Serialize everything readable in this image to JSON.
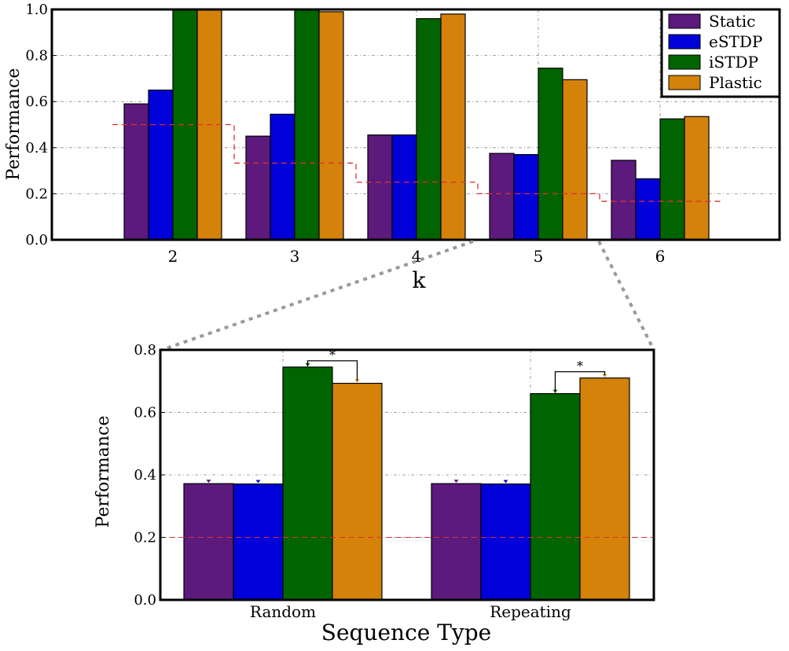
{
  "colors": {
    "Static": "#5b1a7c",
    "eSTDP": "#0000d8",
    "iSTDP": "#006400",
    "Plastic": "#d4820a",
    "chance": "#e03030",
    "zoom_line": "#999999"
  },
  "chart_data": [
    {
      "id": "top",
      "type": "bar",
      "title": "",
      "xlabel": "k",
      "ylabel": "Performance",
      "categories": [
        "2",
        "3",
        "4",
        "5",
        "6"
      ],
      "ylim": [
        0.0,
        1.0
      ],
      "yticks": [
        "0.0",
        "0.2",
        "0.4",
        "0.6",
        "0.8",
        "1.0"
      ],
      "grid": true,
      "legend": "top-right",
      "series": [
        {
          "name": "Static",
          "values": [
            0.59,
            0.45,
            0.455,
            0.375,
            0.345
          ]
        },
        {
          "name": "eSTDP",
          "values": [
            0.65,
            0.545,
            0.455,
            0.37,
            0.265
          ]
        },
        {
          "name": "iSTDP",
          "values": [
            1.0,
            1.0,
            0.96,
            0.745,
            0.525
          ]
        },
        {
          "name": "Plastic",
          "values": [
            1.0,
            0.99,
            0.98,
            0.695,
            0.535
          ]
        }
      ],
      "chance_levels": [
        0.5,
        0.333,
        0.25,
        0.2,
        0.167
      ]
    },
    {
      "id": "bottom",
      "type": "bar",
      "title": "",
      "xlabel": "Sequence Type",
      "ylabel": "Performance",
      "categories": [
        "Random",
        "Repeating"
      ],
      "ylim": [
        0.0,
        0.8
      ],
      "yticks": [
        "0.0",
        "0.2",
        "0.4",
        "0.6",
        "0.8"
      ],
      "grid": true,
      "series": [
        {
          "name": "Static",
          "values": [
            0.372,
            0.372
          ]
        },
        {
          "name": "eSTDP",
          "values": [
            0.371,
            0.371
          ]
        },
        {
          "name": "iSTDP",
          "values": [
            0.745,
            0.66
          ]
        },
        {
          "name": "Plastic",
          "values": [
            0.693,
            0.71
          ]
        }
      ],
      "chance_level": 0.2,
      "significance": [
        "*",
        "*"
      ]
    }
  ]
}
